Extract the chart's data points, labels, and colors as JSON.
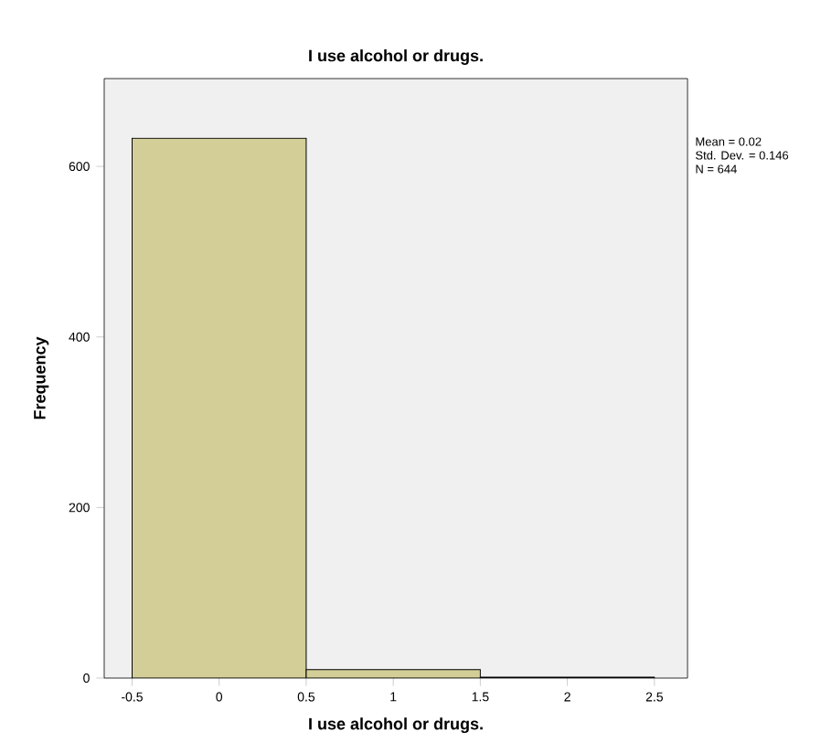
{
  "chart_data": {
    "type": "histogram",
    "title": "I use alcohol or drugs.",
    "xlabel": "I use alcohol or drugs.",
    "ylabel": "Frequency",
    "bins": [
      -0.5,
      0.5,
      1.5,
      2.5
    ],
    "values": [
      633,
      10,
      1
    ],
    "color": "#d3ce97",
    "xlim": [
      -0.66,
      2.69
    ],
    "xticks": [
      -0.5,
      0,
      0.5,
      1,
      1.5,
      2,
      2.5
    ],
    "ylim": [
      0,
      703
    ],
    "yticks": [
      0,
      200,
      400,
      600
    ],
    "annotations": [
      "Mean = 0.02",
      "Std. Dev. = 0.146",
      "N = 644"
    ]
  }
}
